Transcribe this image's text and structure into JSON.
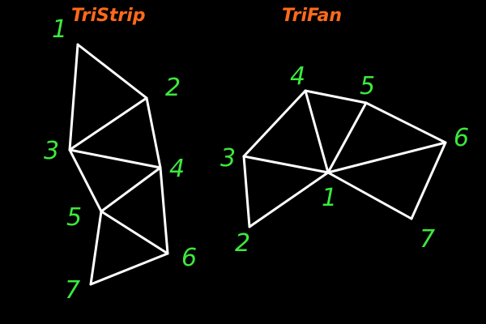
{
  "colors": {
    "background": "#000000",
    "title": "#ff6a1a",
    "edge": "#ffffff",
    "vertex_label": "#3de83d"
  },
  "tristrip": {
    "title": "TriStrip",
    "vertices": [
      {
        "label": "1"
      },
      {
        "label": "2"
      },
      {
        "label": "3"
      },
      {
        "label": "4"
      },
      {
        "label": "5"
      },
      {
        "label": "6"
      },
      {
        "label": "7"
      }
    ]
  },
  "trifan": {
    "title": "TriFan",
    "vertices": [
      {
        "label": "1"
      },
      {
        "label": "2"
      },
      {
        "label": "3"
      },
      {
        "label": "4"
      },
      {
        "label": "5"
      },
      {
        "label": "6"
      },
      {
        "label": "7"
      }
    ]
  }
}
